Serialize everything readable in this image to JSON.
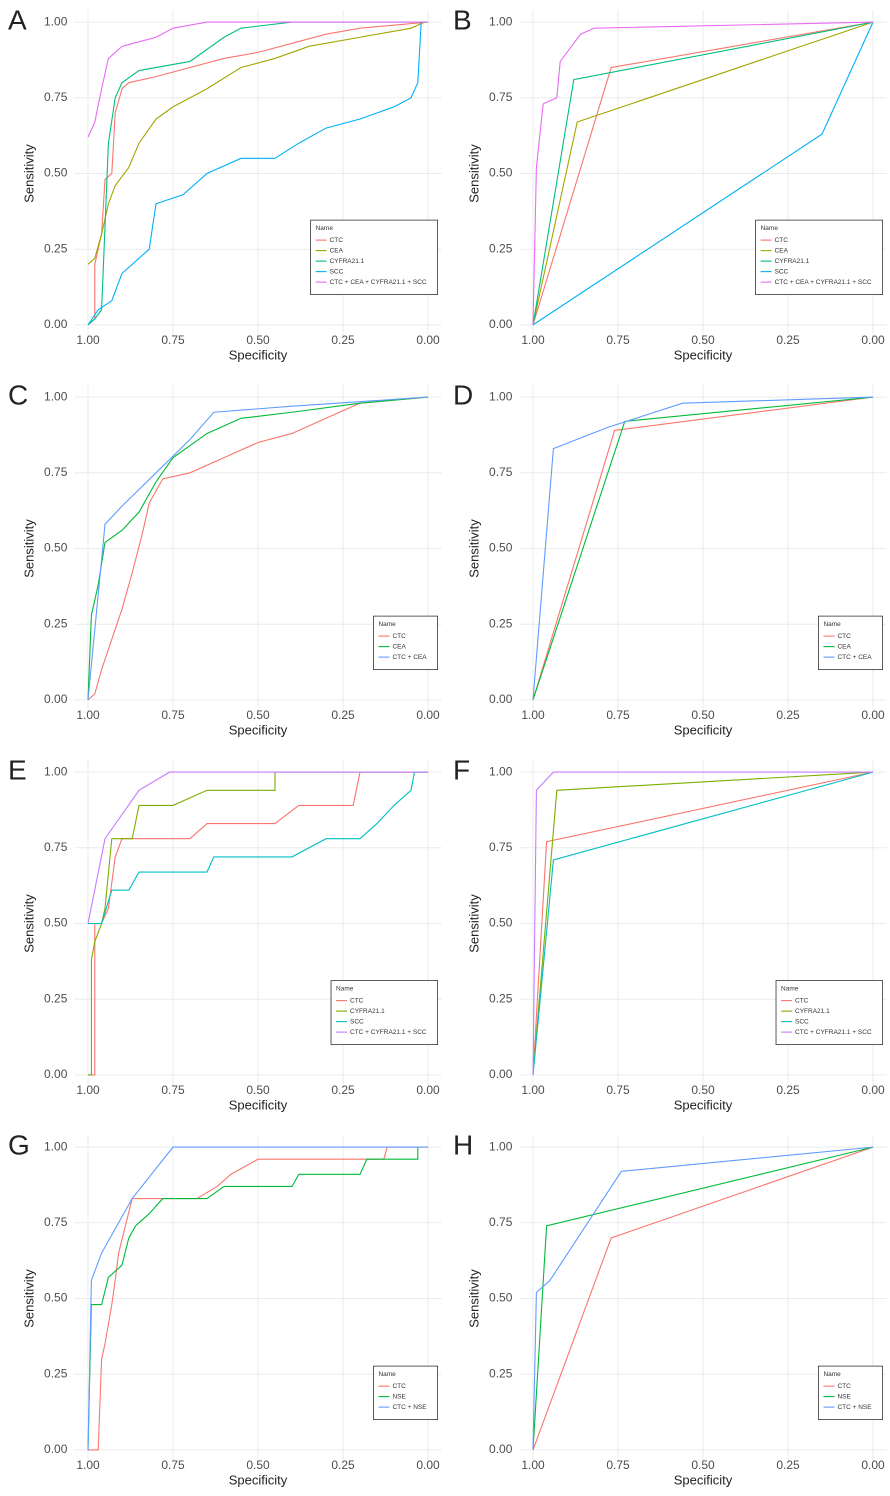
{
  "chart_data": [
    {
      "type": "line",
      "title": "A",
      "xlabel": "Specificity",
      "ylabel": "Sensitivity",
      "xlim": [
        1.04,
        -0.04
      ],
      "ylim": [
        -0.04,
        1.04
      ],
      "xticks": [
        {
          "value": 1,
          "label": "1.00"
        },
        0.75,
        {
          "value": 0.5,
          "label": "0.50"
        },
        0.25,
        {
          "value": 0,
          "label": "0.00"
        }
      ],
      "yticks": [
        {
          "value": 0,
          "label": "0.00"
        },
        0.25,
        {
          "value": 0.5,
          "label": "0.50"
        },
        0.75,
        {
          "value": 1,
          "label": "1.00"
        }
      ],
      "grid": true,
      "legend": "lower right",
      "legend_title": "Name",
      "series": [
        {
          "name": "CTC",
          "color": "#F8766D",
          "x": [
            1,
            0.98,
            0.98,
            0.96,
            0.95,
            0.93,
            0.92,
            0.9,
            0.88,
            0.8,
            0.7,
            0.6,
            0.5,
            0.4,
            0.3,
            0.2,
            0.1,
            0
          ],
          "values": [
            0,
            0.02,
            0.2,
            0.3,
            0.48,
            0.5,
            0.7,
            0.78,
            0.8,
            0.82,
            0.85,
            0.88,
            0.9,
            0.93,
            0.96,
            0.98,
            0.99,
            1
          ]
        },
        {
          "name": "CEA",
          "color": "#A3A500",
          "x": [
            1,
            0.98,
            0.96,
            0.94,
            0.92,
            0.88,
            0.85,
            0.8,
            0.75,
            0.65,
            0.55,
            0.45,
            0.35,
            0.2,
            0.05,
            0.01
          ],
          "values": [
            0.2,
            0.22,
            0.3,
            0.4,
            0.46,
            0.52,
            0.6,
            0.68,
            0.72,
            0.78,
            0.85,
            0.88,
            0.92,
            0.95,
            0.98,
            1
          ]
        },
        {
          "name": "CYFRA21.1",
          "color": "#00BF7D",
          "x": [
            1,
            0.98,
            0.96,
            0.94,
            0.92,
            0.9,
            0.85,
            0.7,
            0.6,
            0.55,
            0.4,
            0
          ],
          "values": [
            0,
            0.02,
            0.05,
            0.6,
            0.75,
            0.8,
            0.84,
            0.87,
            0.95,
            0.98,
            1,
            1
          ]
        },
        {
          "name": "SCC",
          "color": "#00B0F6",
          "x": [
            1,
            0.97,
            0.93,
            0.9,
            0.82,
            0.8,
            0.72,
            0.65,
            0.55,
            0.45,
            0.38,
            0.3,
            0.2,
            0.1,
            0.05,
            0.03,
            0.02,
            0
          ],
          "values": [
            0,
            0.05,
            0.08,
            0.17,
            0.25,
            0.4,
            0.43,
            0.5,
            0.55,
            0.55,
            0.6,
            0.65,
            0.68,
            0.72,
            0.75,
            0.8,
            1,
            1
          ]
        },
        {
          "name": "CTC + CEA + CYFRA21.1 + SCC",
          "color": "#E76BF3",
          "x": [
            1,
            0.98,
            0.96,
            0.94,
            0.9,
            0.8,
            0.75,
            0.65,
            0
          ],
          "values": [
            0.62,
            0.67,
            0.78,
            0.88,
            0.92,
            0.95,
            0.98,
            1,
            1
          ]
        }
      ]
    },
    {
      "type": "line",
      "title": "B",
      "xlabel": "Specificity",
      "ylabel": "Sensitivity",
      "xlim": [
        1.04,
        -0.04
      ],
      "ylim": [
        -0.04,
        1.04
      ],
      "xticks": [
        {
          "value": 1,
          "label": "1.00"
        },
        0.75,
        {
          "value": 0.5,
          "label": "0.50"
        },
        0.25,
        {
          "value": 0,
          "label": "0.00"
        }
      ],
      "yticks": [
        {
          "value": 0,
          "label": "0.00"
        },
        0.25,
        {
          "value": 0.5,
          "label": "0.50"
        },
        0.75,
        {
          "value": 1,
          "label": "1.00"
        }
      ],
      "grid": true,
      "legend": "lower right",
      "legend_title": "Name",
      "series": [
        {
          "name": "CTC",
          "color": "#F8766D",
          "x": [
            1,
            0.77,
            0
          ],
          "values": [
            0,
            0.85,
            1
          ]
        },
        {
          "name": "CEA",
          "color": "#A3A500",
          "x": [
            1,
            0.87,
            0
          ],
          "values": [
            0,
            0.67,
            1
          ]
        },
        {
          "name": "CYFRA21.1",
          "color": "#00BF7D",
          "x": [
            1,
            0.88,
            0
          ],
          "values": [
            0,
            0.81,
            1
          ]
        },
        {
          "name": "SCC",
          "color": "#00B0F6",
          "x": [
            1,
            0.15,
            0
          ],
          "values": [
            0,
            0.63,
            1
          ]
        },
        {
          "name": "CTC + CEA + CYFRA21.1 + SCC",
          "color": "#E76BF3",
          "x": [
            1,
            0.99,
            0.97,
            0.93,
            0.92,
            0.86,
            0.82,
            0
          ],
          "values": [
            0,
            0.52,
            0.73,
            0.75,
            0.87,
            0.96,
            0.98,
            1
          ]
        }
      ]
    },
    {
      "type": "line",
      "title": "C",
      "xlabel": "Specificity",
      "ylabel": "Sensitivity",
      "xlim": [
        1.04,
        -0.04
      ],
      "ylim": [
        -0.04,
        1.04
      ],
      "xticks": [
        {
          "value": 1,
          "label": "1.00"
        },
        0.75,
        {
          "value": 0.5,
          "label": "0.50"
        },
        0.25,
        {
          "value": 0,
          "label": "0.00"
        }
      ],
      "yticks": [
        {
          "value": 0,
          "label": "0.00"
        },
        0.25,
        {
          "value": 0.5,
          "label": "0.50"
        },
        0.75,
        {
          "value": 1,
          "label": "1.00"
        }
      ],
      "grid": true,
      "legend": "lower right",
      "legend_title": "Name",
      "series": [
        {
          "name": "CTC",
          "color": "#F8766D",
          "x": [
            1,
            0.98,
            0.96,
            0.93,
            0.9,
            0.87,
            0.84,
            0.82,
            0.78,
            0.7,
            0.6,
            0.5,
            0.4,
            0.3,
            0.2,
            0
          ],
          "values": [
            0,
            0.02,
            0.1,
            0.2,
            0.3,
            0.42,
            0.55,
            0.65,
            0.73,
            0.75,
            0.8,
            0.85,
            0.88,
            0.93,
            0.98,
            1
          ]
        },
        {
          "name": "CEA",
          "color": "#00BA38",
          "x": [
            1,
            0.99,
            0.97,
            0.95,
            0.9,
            0.85,
            0.8,
            0.75,
            0.65,
            0.55,
            0.4,
            0.2,
            0
          ],
          "values": [
            0,
            0.28,
            0.38,
            0.52,
            0.56,
            0.62,
            0.72,
            0.8,
            0.88,
            0.93,
            0.95,
            0.98,
            1
          ]
        },
        {
          "name": "CTC + CEA",
          "color": "#619CFF",
          "x": [
            1,
            0.95,
            0.9,
            0.8,
            0.7,
            0.63,
            0.4,
            0
          ],
          "values": [
            0,
            0.58,
            0.64,
            0.75,
            0.86,
            0.95,
            0.97,
            1
          ]
        }
      ]
    },
    {
      "type": "line",
      "title": "D",
      "xlabel": "Specificity",
      "ylabel": "Sensitivity",
      "xlim": [
        1.04,
        -0.04
      ],
      "ylim": [
        -0.04,
        1.04
      ],
      "xticks": [
        {
          "value": 1,
          "label": "1.00"
        },
        0.75,
        {
          "value": 0.5,
          "label": "0.50"
        },
        0.25,
        {
          "value": 0,
          "label": "0.00"
        }
      ],
      "yticks": [
        {
          "value": 0,
          "label": "0.00"
        },
        0.25,
        {
          "value": 0.5,
          "label": "0.50"
        },
        0.75,
        {
          "value": 1,
          "label": "1.00"
        }
      ],
      "grid": true,
      "legend": "lower right",
      "legend_title": "Name",
      "series": [
        {
          "name": "CTC",
          "color": "#F8766D",
          "x": [
            1,
            0.76,
            0
          ],
          "values": [
            0,
            0.89,
            1
          ]
        },
        {
          "name": "CEA",
          "color": "#00BA38",
          "x": [
            1,
            0.73,
            0
          ],
          "values": [
            0,
            0.92,
            1
          ]
        },
        {
          "name": "CTC + CEA",
          "color": "#619CFF",
          "x": [
            1,
            0.94,
            0.78,
            0.56,
            0
          ],
          "values": [
            0,
            0.83,
            0.9,
            0.98,
            1
          ]
        }
      ]
    },
    {
      "type": "line",
      "title": "E",
      "xlabel": "Specificity",
      "ylabel": "Sensitivity",
      "xlim": [
        1.04,
        -0.04
      ],
      "ylim": [
        -0.04,
        1.04
      ],
      "xticks": [
        {
          "value": 1,
          "label": "1.00"
        },
        0.75,
        {
          "value": 0.5,
          "label": "0.50"
        },
        0.25,
        {
          "value": 0,
          "label": "0.00"
        }
      ],
      "yticks": [
        {
          "value": 0,
          "label": "0.00"
        },
        0.25,
        {
          "value": 0.5,
          "label": "0.50"
        },
        0.75,
        {
          "value": 1,
          "label": "1.00"
        }
      ],
      "grid": true,
      "legend": "lower right",
      "legend_title": "Name",
      "series": [
        {
          "name": "CTC",
          "color": "#F8766D",
          "x": [
            1,
            0.98,
            0.98,
            0.96,
            0.94,
            0.92,
            0.9,
            0.7,
            0.65,
            0.45,
            0.38,
            0.22,
            0.2,
            0
          ],
          "values": [
            0,
            0,
            0.5,
            0.5,
            0.55,
            0.72,
            0.78,
            0.78,
            0.83,
            0.83,
            0.89,
            0.89,
            1,
            1
          ]
        },
        {
          "name": "CYFRA21.1",
          "color": "#7CAE00",
          "x": [
            1,
            0.99,
            0.99,
            0.98,
            0.96,
            0.95,
            0.93,
            0.87,
            0.85,
            0.75,
            0.65,
            0.45,
            0.45,
            0
          ],
          "values": [
            0,
            0,
            0.38,
            0.44,
            0.5,
            0.55,
            0.78,
            0.78,
            0.89,
            0.89,
            0.94,
            0.94,
            1,
            1
          ]
        },
        {
          "name": "SCC",
          "color": "#00BFC4",
          "x": [
            1,
            0.96,
            0.93,
            0.88,
            0.85,
            0.65,
            0.63,
            0.4,
            0.3,
            0.2,
            0.15,
            0.1,
            0.05,
            0.04,
            0
          ],
          "values": [
            0.5,
            0.5,
            0.61,
            0.61,
            0.67,
            0.67,
            0.72,
            0.72,
            0.78,
            0.78,
            0.83,
            0.89,
            0.94,
            1,
            1
          ]
        },
        {
          "name": "CTC + CYFRA21.1 + SCC",
          "color": "#C77CFF",
          "x": [
            1,
            0.95,
            0.85,
            0.76,
            0
          ],
          "values": [
            0.5,
            0.78,
            0.94,
            1,
            1
          ]
        }
      ]
    },
    {
      "type": "line",
      "title": "F",
      "xlabel": "Specificity",
      "ylabel": "Sensitivity",
      "xlim": [
        1.04,
        -0.04
      ],
      "ylim": [
        -0.04,
        1.04
      ],
      "xticks": [
        {
          "value": 1,
          "label": "1.00"
        },
        0.75,
        {
          "value": 0.5,
          "label": "0.50"
        },
        0.25,
        {
          "value": 0,
          "label": "0.00"
        }
      ],
      "yticks": [
        {
          "value": 0,
          "label": "0.00"
        },
        0.25,
        {
          "value": 0.5,
          "label": "0.50"
        },
        0.75,
        {
          "value": 1,
          "label": "1.00"
        }
      ],
      "grid": true,
      "legend": "lower right",
      "legend_title": "Name",
      "series": [
        {
          "name": "CTC",
          "color": "#F8766D",
          "x": [
            1,
            0.96,
            0
          ],
          "values": [
            0,
            0.77,
            1
          ]
        },
        {
          "name": "CYFRA21.1",
          "color": "#7CAE00",
          "x": [
            1,
            0.93,
            0
          ],
          "values": [
            0,
            0.94,
            1
          ]
        },
        {
          "name": "SCC",
          "color": "#00BFC4",
          "x": [
            1,
            0.94,
            0
          ],
          "values": [
            0,
            0.71,
            1
          ]
        },
        {
          "name": "CTC + CYFRA21.1 + SCC",
          "color": "#C77CFF",
          "x": [
            1,
            0.99,
            0.94,
            0
          ],
          "values": [
            0,
            0.94,
            1,
            1
          ]
        }
      ]
    },
    {
      "type": "line",
      "title": "G",
      "xlabel": "Specificity",
      "ylabel": "Sensitivity",
      "xlim": [
        1.04,
        -0.04
      ],
      "ylim": [
        -0.04,
        1.04
      ],
      "xticks": [
        {
          "value": 1,
          "label": "1.00"
        },
        0.75,
        {
          "value": 0.5,
          "label": "0.50"
        },
        0.25,
        {
          "value": 0,
          "label": "0.00"
        }
      ],
      "yticks": [
        {
          "value": 0,
          "label": "0.00"
        },
        0.25,
        {
          "value": 0.5,
          "label": "0.50"
        },
        0.75,
        {
          "value": 1,
          "label": "1.00"
        }
      ],
      "grid": true,
      "legend": "lower right",
      "legend_title": "Name",
      "series": [
        {
          "name": "CTC",
          "color": "#F8766D",
          "x": [
            1,
            0.97,
            0.96,
            0.95,
            0.93,
            0.92,
            0.91,
            0.89,
            0.87,
            0.68,
            0.62,
            0.58,
            0.5,
            0.13,
            0.12,
            0
          ],
          "values": [
            0,
            0,
            0.3,
            0.35,
            0.48,
            0.56,
            0.65,
            0.74,
            0.83,
            0.83,
            0.87,
            0.91,
            0.96,
            0.96,
            1,
            1
          ]
        },
        {
          "name": "NSE",
          "color": "#00BA38",
          "x": [
            1,
            0.99,
            0.96,
            0.94,
            0.9,
            0.88,
            0.86,
            0.82,
            0.78,
            0.65,
            0.6,
            0.4,
            0.38,
            0.2,
            0.18,
            0.03,
            0.03
          ],
          "values": [
            0,
            0.48,
            0.48,
            0.57,
            0.61,
            0.7,
            0.74,
            0.78,
            0.83,
            0.83,
            0.87,
            0.87,
            0.91,
            0.91,
            0.96,
            0.96,
            1
          ]
        },
        {
          "name": "CTC + NSE",
          "color": "#619CFF",
          "x": [
            1,
            0.99,
            0.96,
            0.87,
            0.75,
            0
          ],
          "values": [
            0,
            0.56,
            0.65,
            0.83,
            1,
            1
          ]
        }
      ]
    },
    {
      "type": "line",
      "title": "H",
      "xlabel": "Specificity",
      "ylabel": "Sensitivity",
      "xlim": [
        1.04,
        -0.04
      ],
      "ylim": [
        -0.04,
        1.04
      ],
      "xticks": [
        {
          "value": 1,
          "label": "1.00"
        },
        0.75,
        {
          "value": 0.5,
          "label": "0.50"
        },
        0.25,
        {
          "value": 0,
          "label": "0.00"
        }
      ],
      "yticks": [
        {
          "value": 0,
          "label": "0.00"
        },
        0.25,
        {
          "value": 0.5,
          "label": "0.50"
        },
        0.75,
        {
          "value": 1,
          "label": "1.00"
        }
      ],
      "grid": true,
      "legend": "lower right",
      "legend_title": "Name",
      "series": [
        {
          "name": "CTC",
          "color": "#F8766D",
          "x": [
            1,
            0.77,
            0
          ],
          "values": [
            0,
            0.7,
            1
          ]
        },
        {
          "name": "NSE",
          "color": "#00BA38",
          "x": [
            1,
            0.96,
            0
          ],
          "values": [
            0,
            0.74,
            1
          ]
        },
        {
          "name": "CTC + NSE",
          "color": "#619CFF",
          "x": [
            1,
            0.99,
            0.95,
            0.74,
            0
          ],
          "values": [
            0,
            0.52,
            0.56,
            0.92,
            1
          ]
        }
      ]
    }
  ]
}
